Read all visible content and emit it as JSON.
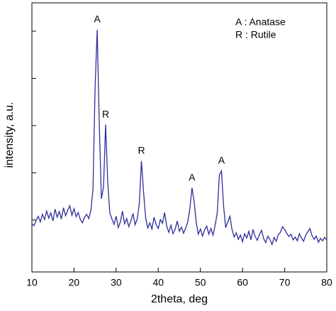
{
  "chart_data": {
    "type": "line",
    "xlabel": "2theta, deg",
    "ylabel": "intensity, a.u.",
    "x": [
      10,
      10.5,
      11,
      11.5,
      12,
      12.5,
      13,
      13.5,
      14,
      14.5,
      15,
      15.5,
      16,
      16.5,
      17,
      17.5,
      18,
      18.5,
      19,
      19.5,
      20,
      20.5,
      21,
      21.5,
      22,
      22.5,
      23,
      23.5,
      24,
      24.5,
      25,
      25.5,
      26,
      26.5,
      27,
      27.5,
      28,
      28.5,
      29,
      29.5,
      30,
      30.5,
      31,
      31.5,
      32,
      32.5,
      33,
      33.5,
      34,
      34.5,
      35,
      35.5,
      36,
      36.5,
      37,
      37.5,
      38,
      38.5,
      39,
      39.5,
      40,
      40.5,
      41,
      41.5,
      42,
      42.5,
      43,
      43.5,
      44,
      44.5,
      45,
      45.5,
      46,
      46.5,
      47,
      47.5,
      48,
      48.5,
      49,
      49.5,
      50,
      50.5,
      51,
      51.5,
      52,
      52.5,
      53,
      53.5,
      54,
      54.5,
      55,
      55.5,
      56,
      56.5,
      57,
      57.5,
      58,
      58.5,
      59,
      59.5,
      60,
      60.5,
      61,
      61.5,
      62,
      62.5,
      63,
      63.5,
      64,
      64.5,
      65,
      65.5,
      66,
      66.5,
      67,
      67.5,
      68,
      68.5,
      69,
      69.5,
      70,
      70.5,
      71,
      71.5,
      72,
      72.5,
      73,
      73.5,
      74,
      74.5,
      75,
      75.5,
      76,
      76.5,
      77,
      77.5,
      78,
      78.5,
      79,
      79.5,
      80
    ],
    "series": [
      {
        "color": "#2e2e9a",
        "values": [
          9.2,
          8.8,
          9.9,
          10.8,
          9.6,
          11.2,
          10.1,
          11.9,
          10.4,
          11.5,
          9.8,
          12.3,
          10.6,
          11.8,
          10.2,
          12.6,
          10.9,
          12.1,
          13.0,
          11.0,
          12.4,
          10.7,
          11.6,
          10.1,
          9.4,
          10.6,
          11.2,
          10.3,
          12.0,
          16.5,
          38,
          50.3,
          30,
          14.5,
          17,
          30.2,
          18,
          11.5,
          10.2,
          9.1,
          10.8,
          8.4,
          9.6,
          11.9,
          9.2,
          10.3,
          8.6,
          9.8,
          11.4,
          9.0,
          10.2,
          13.5,
          22.5,
          16,
          10.5,
          8.3,
          9.4,
          8.1,
          10.6,
          9.0,
          8.2,
          10.1,
          9.3,
          11.6,
          8.7,
          7.4,
          8.9,
          7.1,
          8.0,
          9.8,
          7.6,
          8.5,
          7.2,
          8.3,
          9.6,
          12.5,
          16.8,
          14.0,
          9.5,
          7.0,
          8.1,
          6.6,
          7.9,
          8.7,
          7.0,
          8.2,
          6.8,
          8.9,
          11.5,
          19.5,
          20.4,
          13,
          8.4,
          9.6,
          10.8,
          8.0,
          6.4,
          7.3,
          5.9,
          6.8,
          5.4,
          7.1,
          6.2,
          7.6,
          5.8,
          8.0,
          6.5,
          5.7,
          6.9,
          7.8,
          6.1,
          5.2,
          6.6,
          5.9,
          4.8,
          6.3,
          5.5,
          6.9,
          7.4,
          8.6,
          8.0,
          7.2,
          6.5,
          7.0,
          5.8,
          6.4,
          5.6,
          7.1,
          6.2,
          5.5,
          6.8,
          7.5,
          8.2,
          6.7,
          5.9,
          6.6,
          5.3,
          6.1,
          5.6,
          6.3,
          5.8
        ]
      }
    ],
    "xlim": [
      10,
      80
    ],
    "xticks": [
      10,
      20,
      30,
      40,
      50,
      60,
      70,
      80
    ],
    "ylim": [
      -1,
      56
    ],
    "yticks": [
      10,
      20,
      30,
      40,
      50
    ],
    "annotations": [
      {
        "text": "A",
        "x": 25.5
      },
      {
        "text": "R",
        "x": 27.5
      },
      {
        "text": "R",
        "x": 36
      },
      {
        "text": "A",
        "x": 48
      },
      {
        "text": "A",
        "x": 55
      }
    ],
    "legend": [
      "A : Anatase",
      "R : Rutile"
    ]
  }
}
